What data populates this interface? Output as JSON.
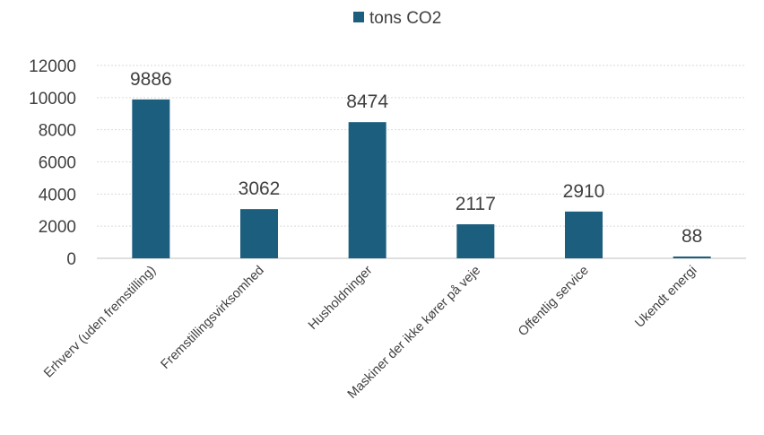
{
  "chart_data": {
    "type": "bar",
    "categories": [
      "Erhverv  (uden fremstilling)",
      "Fremstillingsvirksomhed",
      "Husholdninger",
      "Maskiner der ikke kører på veje",
      "Offentlig service",
      "Ukendt energi"
    ],
    "series": [
      {
        "name": "tons CO2",
        "values": [
          9886,
          3062,
          8474,
          2117,
          2910,
          88
        ],
        "color": "#1b5e7e"
      }
    ],
    "yticks": [
      "0",
      "2000",
      "4000",
      "6000",
      "8000",
      "10000",
      "12000"
    ],
    "ylim": [
      0,
      12000
    ],
    "grid": true,
    "legend_position": "top-center"
  }
}
